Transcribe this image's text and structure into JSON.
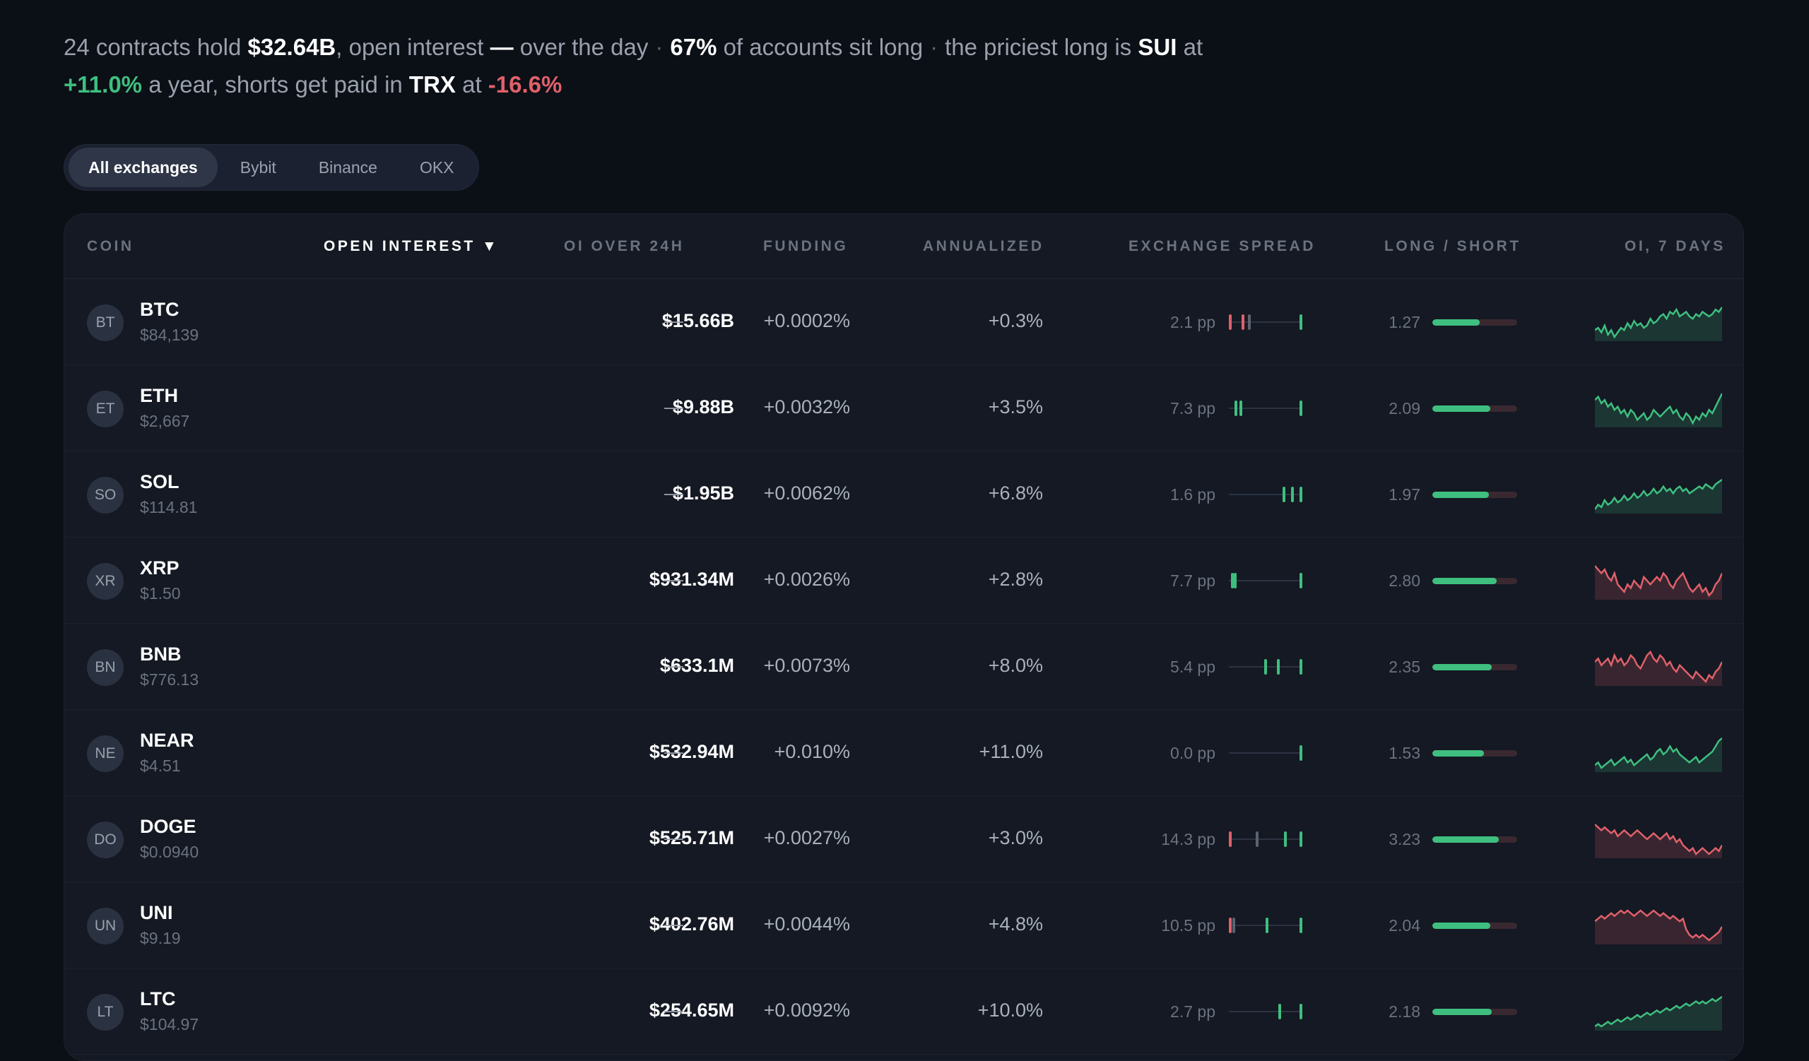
{
  "summary": {
    "p1": "24 contracts hold ",
    "total_oi": "$32.64B",
    "p2": ", open interest ",
    "oi_change": "—",
    "p3": " over the day",
    "long_pct": "67%",
    "p4": " of accounts sit long",
    "p5": "the priciest long is ",
    "priciest_long": "SUI",
    "p6": " at",
    "priciest_rate": "+11.0%",
    "p7": " a year, shorts get paid in ",
    "shorts_coin": "TRX",
    "p8": " at ",
    "shorts_rate": "-16.6%",
    "separator": "·"
  },
  "tabs": [
    "All exchanges",
    "Bybit",
    "Binance",
    "OKX"
  ],
  "active_tab": 0,
  "columns": {
    "coin": "COIN",
    "open_interest": "OPEN INTEREST ▼",
    "oi_24h": "OI OVER 24H",
    "funding": "FUNDING",
    "annualized": "ANNUALIZED",
    "spread": "EXCHANGE SPREAD",
    "long_short": "LONG / SHORT",
    "oi_7d": "OI, 7 DAYS"
  },
  "colors": {
    "positive": "#3fbf7f",
    "negative": "#e0606a",
    "neutral": "#5b6270"
  },
  "rows": [
    {
      "abbr": "BT",
      "symbol": "BTC",
      "price": "$84,139",
      "oi": "$15.66B",
      "oi24": "—",
      "funding": "+0.0002%",
      "annualized": "+0.3%",
      "spread": "2.1 pp",
      "spread_ticks": [
        {
          "p": 0.0,
          "c": "#e0606a"
        },
        {
          "p": 0.18,
          "c": "#e0606a"
        },
        {
          "p": 0.27,
          "c": "#5b6270"
        },
        {
          "p": 1.0,
          "c": "#3fbf7f"
        }
      ],
      "ls": "1.27",
      "ls_fill": 0.56,
      "trend": "up",
      "spark": [
        5,
        6,
        4,
        7,
        3,
        5,
        2,
        4,
        6,
        5,
        8,
        6,
        9,
        7,
        8,
        6,
        7,
        10,
        8,
        9,
        11,
        12,
        10,
        13,
        12,
        14,
        11,
        12,
        13,
        11,
        10,
        12,
        11,
        13,
        12,
        11,
        12,
        14,
        13,
        15
      ]
    },
    {
      "abbr": "ET",
      "symbol": "ETH",
      "price": "$2,667",
      "oi": "$9.88B",
      "oi24": "—",
      "funding": "+0.0032%",
      "annualized": "+3.5%",
      "spread": "7.3 pp",
      "spread_ticks": [
        {
          "p": 0.08,
          "c": "#3fbf7f"
        },
        {
          "p": 0.15,
          "c": "#3fbf7f"
        },
        {
          "p": 1.0,
          "c": "#3fbf7f"
        }
      ],
      "ls": "2.09",
      "ls_fill": 0.68,
      "trend": "up",
      "spark": [
        12,
        13,
        11,
        12,
        10,
        11,
        9,
        10,
        8,
        9,
        7,
        9,
        8,
        6,
        7,
        8,
        6,
        7,
        9,
        8,
        7,
        8,
        9,
        10,
        8,
        9,
        7,
        6,
        8,
        7,
        5,
        7,
        6,
        8,
        7,
        9,
        8,
        10,
        12,
        14
      ]
    },
    {
      "abbr": "SO",
      "symbol": "SOL",
      "price": "$114.81",
      "oi": "$1.95B",
      "oi24": "—",
      "funding": "+0.0062%",
      "annualized": "+6.8%",
      "spread": "1.6 pp",
      "spread_ticks": [
        {
          "p": 0.76,
          "c": "#3fbf7f"
        },
        {
          "p": 0.88,
          "c": "#3fbf7f"
        },
        {
          "p": 1.0,
          "c": "#3fbf7f"
        }
      ],
      "ls": "1.97",
      "ls_fill": 0.67,
      "trend": "up",
      "spark": [
        3,
        5,
        4,
        7,
        5,
        6,
        8,
        6,
        7,
        9,
        7,
        8,
        10,
        8,
        9,
        11,
        9,
        10,
        12,
        10,
        11,
        13,
        11,
        12,
        10,
        12,
        13,
        11,
        12,
        10,
        11,
        12,
        13,
        12,
        14,
        13,
        12,
        14,
        15,
        16
      ]
    },
    {
      "abbr": "XR",
      "symbol": "XRP",
      "price": "$1.50",
      "oi": "$931.34M",
      "oi24": "—",
      "funding": "+0.0026%",
      "annualized": "+2.8%",
      "spread": "7.7 pp",
      "spread_ticks": [
        {
          "p": 0.03,
          "c": "#3fbf7f"
        },
        {
          "p": 0.07,
          "c": "#3fbf7f"
        },
        {
          "p": 1.0,
          "c": "#3fbf7f"
        }
      ],
      "ls": "2.80",
      "ls_fill": 0.76,
      "trend": "down",
      "spark": [
        14,
        13,
        12,
        13,
        11,
        10,
        12,
        9,
        8,
        7,
        9,
        8,
        10,
        9,
        8,
        11,
        10,
        9,
        10,
        11,
        10,
        12,
        11,
        9,
        8,
        10,
        11,
        12,
        10,
        8,
        7,
        8,
        9,
        7,
        8,
        6,
        7,
        9,
        10,
        12
      ]
    },
    {
      "abbr": "BN",
      "symbol": "BNB",
      "price": "$776.13",
      "oi": "$633.1M",
      "oi24": "—",
      "funding": "+0.0073%",
      "annualized": "+8.0%",
      "spread": "5.4 pp",
      "spread_ticks": [
        {
          "p": 0.5,
          "c": "#3fbf7f"
        },
        {
          "p": 0.68,
          "c": "#3fbf7f"
        },
        {
          "p": 1.0,
          "c": "#3fbf7f"
        }
      ],
      "ls": "2.35",
      "ls_fill": 0.7,
      "trend": "down",
      "spark": [
        11,
        12,
        10,
        11,
        12,
        10,
        13,
        11,
        12,
        10,
        11,
        13,
        12,
        10,
        9,
        11,
        13,
        14,
        12,
        11,
        13,
        12,
        10,
        11,
        9,
        8,
        10,
        9,
        8,
        7,
        6,
        8,
        7,
        6,
        5,
        7,
        6,
        8,
        9,
        11
      ]
    },
    {
      "abbr": "NE",
      "symbol": "NEAR",
      "price": "$4.51",
      "oi": "$532.94M",
      "oi24": "—",
      "funding": "+0.010%",
      "annualized": "+11.0%",
      "spread": "0.0 pp",
      "spread_ticks": [
        {
          "p": 1.0,
          "c": "#3fbf7f"
        }
      ],
      "ls": "1.53",
      "ls_fill": 0.61,
      "trend": "up",
      "spark": [
        6,
        7,
        5,
        6,
        7,
        8,
        6,
        7,
        8,
        9,
        7,
        8,
        6,
        7,
        8,
        9,
        10,
        8,
        9,
        11,
        12,
        10,
        11,
        13,
        11,
        12,
        10,
        9,
        8,
        7,
        8,
        9,
        7,
        8,
        9,
        10,
        11,
        13,
        15,
        16
      ]
    },
    {
      "abbr": "DO",
      "symbol": "DOGE",
      "price": "$0.0940",
      "oi": "$525.71M",
      "oi24": "—",
      "funding": "+0.0027%",
      "annualized": "+3.0%",
      "spread": "14.3 pp",
      "spread_ticks": [
        {
          "p": 0.0,
          "c": "#e0606a"
        },
        {
          "p": 0.38,
          "c": "#5b6270"
        },
        {
          "p": 0.78,
          "c": "#3fbf7f"
        },
        {
          "p": 1.0,
          "c": "#3fbf7f"
        }
      ],
      "ls": "3.23",
      "ls_fill": 0.78,
      "trend": "down",
      "spark": [
        14,
        13,
        12,
        13,
        12,
        11,
        12,
        10,
        11,
        12,
        11,
        10,
        11,
        12,
        11,
        10,
        9,
        10,
        11,
        10,
        9,
        10,
        11,
        9,
        10,
        8,
        9,
        7,
        6,
        5,
        6,
        4,
        5,
        6,
        5,
        4,
        5,
        6,
        5,
        7
      ]
    },
    {
      "abbr": "UN",
      "symbol": "UNI",
      "price": "$9.19",
      "oi": "$402.76M",
      "oi24": "—",
      "funding": "+0.0044%",
      "annualized": "+4.8%",
      "spread": "10.5 pp",
      "spread_ticks": [
        {
          "p": 0.0,
          "c": "#e0606a"
        },
        {
          "p": 0.05,
          "c": "#5b6270"
        },
        {
          "p": 0.52,
          "c": "#3fbf7f"
        },
        {
          "p": 1.0,
          "c": "#3fbf7f"
        }
      ],
      "ls": "2.04",
      "ls_fill": 0.68,
      "trend": "down",
      "spark": [
        9,
        10,
        11,
        10,
        11,
        12,
        11,
        12,
        13,
        12,
        13,
        12,
        11,
        12,
        13,
        12,
        11,
        12,
        13,
        12,
        11,
        12,
        11,
        10,
        11,
        10,
        9,
        10,
        6,
        4,
        3,
        4,
        3,
        4,
        3,
        2,
        3,
        4,
        5,
        7
      ]
    },
    {
      "abbr": "LT",
      "symbol": "LTC",
      "price": "$104.97",
      "oi": "$254.65M",
      "oi24": "—",
      "funding": "+0.0092%",
      "annualized": "+10.0%",
      "spread": "2.7 pp",
      "spread_ticks": [
        {
          "p": 0.7,
          "c": "#3fbf7f"
        },
        {
          "p": 1.0,
          "c": "#3fbf7f"
        }
      ],
      "ls": "2.18",
      "ls_fill": 0.7,
      "trend": "up",
      "spark": [
        2,
        3,
        2,
        3,
        4,
        3,
        4,
        5,
        4,
        5,
        6,
        5,
        6,
        7,
        6,
        7,
        8,
        7,
        8,
        9,
        8,
        9,
        10,
        9,
        10,
        11,
        10,
        11,
        12,
        11,
        12,
        13,
        12,
        13,
        12,
        13,
        14,
        13,
        14,
        15
      ]
    }
  ]
}
